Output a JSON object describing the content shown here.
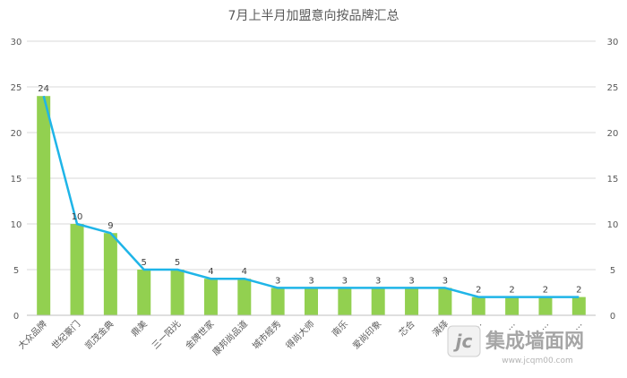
{
  "chart_data": {
    "type": "bar",
    "title": "7月上半月加盟意向按品牌汇总",
    "categories": [
      "大众品牌",
      "世纪豪门",
      "凯茂金典",
      "鼎美",
      "三一阳光",
      "金牌世家",
      "康邦尚品道",
      "城市經秀",
      "得尚大师",
      "南乐",
      "爱尚印象",
      "芯合",
      "演绎",
      "…",
      "…",
      "…",
      "…"
    ],
    "series": [
      {
        "type": "bar",
        "values": [
          24,
          10,
          9,
          5,
          5,
          4,
          4,
          3,
          3,
          3,
          3,
          3,
          3,
          2,
          2,
          2,
          2
        ],
        "color": "#92d050"
      },
      {
        "type": "line",
        "values": [
          24,
          10,
          9,
          5,
          5,
          4,
          4,
          3,
          3,
          3,
          3,
          3,
          3,
          2,
          2,
          2,
          2
        ],
        "color": "#1fb5e8"
      }
    ],
    "data_labels": [
      "24",
      "10",
      "9",
      "5",
      "5",
      "4",
      "4",
      "3",
      "3",
      "3",
      "3",
      "3",
      "3",
      "2",
      "2",
      "2",
      "2"
    ],
    "ylim": [
      0,
      30
    ],
    "yticks": [
      "0",
      "5",
      "10",
      "15",
      "20",
      "25",
      "30"
    ],
    "y2ticks": [
      "0",
      "5",
      "10",
      "15",
      "20",
      "25",
      "30"
    ],
    "grid": true,
    "legend": "none"
  },
  "watermark": {
    "logo": "jc",
    "text": "集成墙面网",
    "url": "www.jcqm00.com"
  }
}
